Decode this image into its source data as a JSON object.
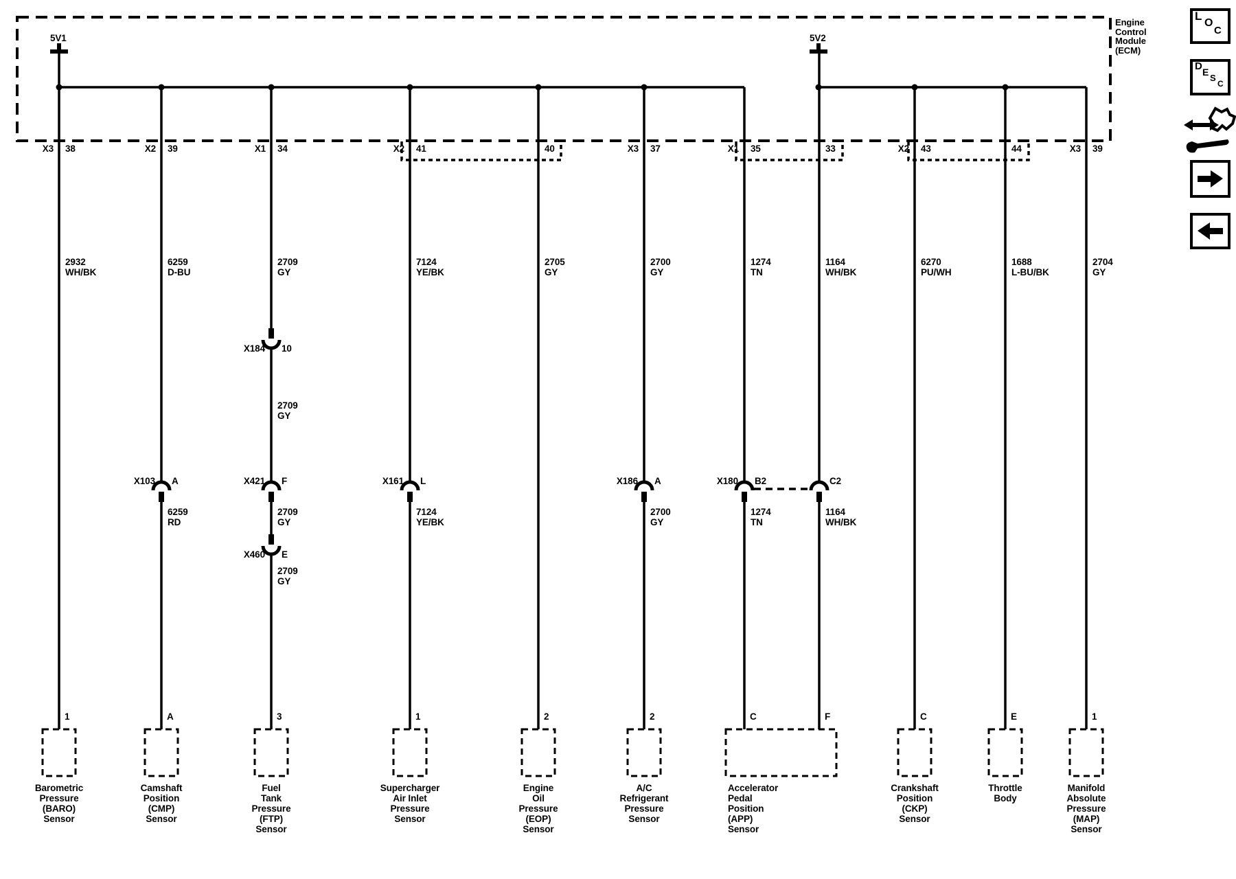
{
  "ecm": {
    "name": "Engine\nControl\nModule\n(ECM)",
    "power_sources": [
      "5V1",
      "5V2"
    ]
  },
  "pins": [
    {
      "connector": "X3",
      "pin": "38"
    },
    {
      "connector": "X2",
      "pin": "39"
    },
    {
      "connector": "X1",
      "pin": "34"
    },
    {
      "connector": "X2",
      "pin": "41"
    },
    {
      "connector": "",
      "pin": "40"
    },
    {
      "connector": "X3",
      "pin": "37"
    },
    {
      "connector": "X1",
      "pin": "35"
    },
    {
      "connector": "",
      "pin": "33"
    },
    {
      "connector": "X2",
      "pin": "43"
    },
    {
      "connector": "",
      "pin": "44"
    },
    {
      "connector": "X3",
      "pin": "39"
    }
  ],
  "circuits": [
    {
      "wire": "2932\nWH/BK",
      "mid_labels": [],
      "connectors": [],
      "bottom_pin": "1",
      "sensor": "Barometric\nPressure\n(BARO)\nSensor"
    },
    {
      "wire": "6259\nD-BU",
      "mid_labels": [
        "6259\nRD"
      ],
      "connectors": [
        {
          "name": "X103",
          "pin": "A"
        }
      ],
      "bottom_pin": "A",
      "sensor": "Camshaft\nPosition\n(CMP)\nSensor"
    },
    {
      "wire": "2709\nGY",
      "mid_labels": [
        "2709\nGY",
        "2709\nGY",
        "2709\nGY"
      ],
      "connectors": [
        {
          "name": "X184",
          "pin": "10"
        },
        {
          "name": "X421",
          "pin": "F"
        },
        {
          "name": "X460",
          "pin": "E"
        }
      ],
      "bottom_pin": "3",
      "sensor": "Fuel\nTank\nPressure\n(FTP)\nSensor"
    },
    {
      "wire": "7124\nYE/BK",
      "mid_labels": [
        "7124\nYE/BK"
      ],
      "connectors": [
        {
          "name": "X161",
          "pin": "L"
        }
      ],
      "bottom_pin": "1",
      "sensor": "Supercharger\nAir Inlet\nPressure\nSensor"
    },
    {
      "wire": "2705\nGY",
      "mid_labels": [],
      "connectors": [],
      "bottom_pin": "2",
      "sensor": "Engine\nOil\nPressure\n(EOP)\nSensor"
    },
    {
      "wire": "2700\nGY",
      "mid_labels": [
        "2700\nGY"
      ],
      "connectors": [
        {
          "name": "X186",
          "pin": "A"
        }
      ],
      "bottom_pin": "2",
      "sensor": "A/C\nRefrigerant\nPressure\nSensor"
    },
    {
      "wire": "1274\nTN",
      "mid_labels": [
        "1274\nTN"
      ],
      "connectors": [
        {
          "name": "X180",
          "pin": "B2"
        }
      ],
      "bottom_pin": "C",
      "sensor": ""
    },
    {
      "wire": "1164\nWH/BK",
      "mid_labels": [
        "1164\nWH/BK"
      ],
      "connectors": [
        {
          "name": "",
          "pin": "C2"
        }
      ],
      "bottom_pin": "F",
      "sensor": ""
    },
    {
      "wire": "6270\nPU/WH",
      "mid_labels": [],
      "connectors": [],
      "bottom_pin": "C",
      "sensor": "Crankshaft\nPosition\n(CKP)\nSensor"
    },
    {
      "wire": "1688\nL-BU/BK",
      "mid_labels": [],
      "connectors": [],
      "bottom_pin": "E",
      "sensor": "Throttle\nBody"
    },
    {
      "wire": "2704\nGY",
      "mid_labels": [],
      "connectors": [],
      "bottom_pin": "1",
      "sensor": "Manifold\nAbsolute\nPressure\n(MAP)\nSensor"
    }
  ],
  "app_sensor": "Accelerator\nPedal\nPosition\n(APP)\nSensor",
  "nav": {
    "loc_label": "LOC",
    "desc_label": "DESC"
  },
  "colors": {
    "line": "#000000",
    "background": "#ffffff"
  }
}
